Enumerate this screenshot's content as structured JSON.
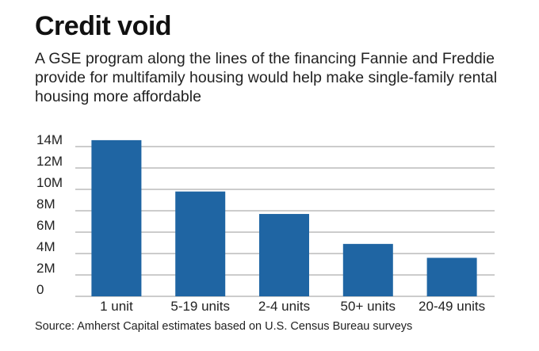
{
  "title": "Credit void",
  "subtitle": "A GSE program along the lines of the financing Fannie and Freddie provide for multifamily housing would help make single-family rental housing more affordable",
  "source": "Source: Amherst Capital estimates based on U.S. Census Bureau surveys",
  "colors": {
    "bar": "#1f65a3",
    "grid": "#9a9a9a"
  },
  "chart_data": {
    "type": "bar",
    "categories": [
      "1 unit",
      "5-19 units",
      "2-4 units",
      "50+ units",
      "20-49 units"
    ],
    "values": [
      14.6,
      9.8,
      7.7,
      4.9,
      3.6
    ],
    "value_unit": "millions",
    "y_ticks": [
      "0",
      "2M",
      "4M",
      "6M",
      "8M",
      "10M",
      "12M",
      "14M"
    ],
    "ylim": [
      0,
      14
    ],
    "grid": true
  }
}
